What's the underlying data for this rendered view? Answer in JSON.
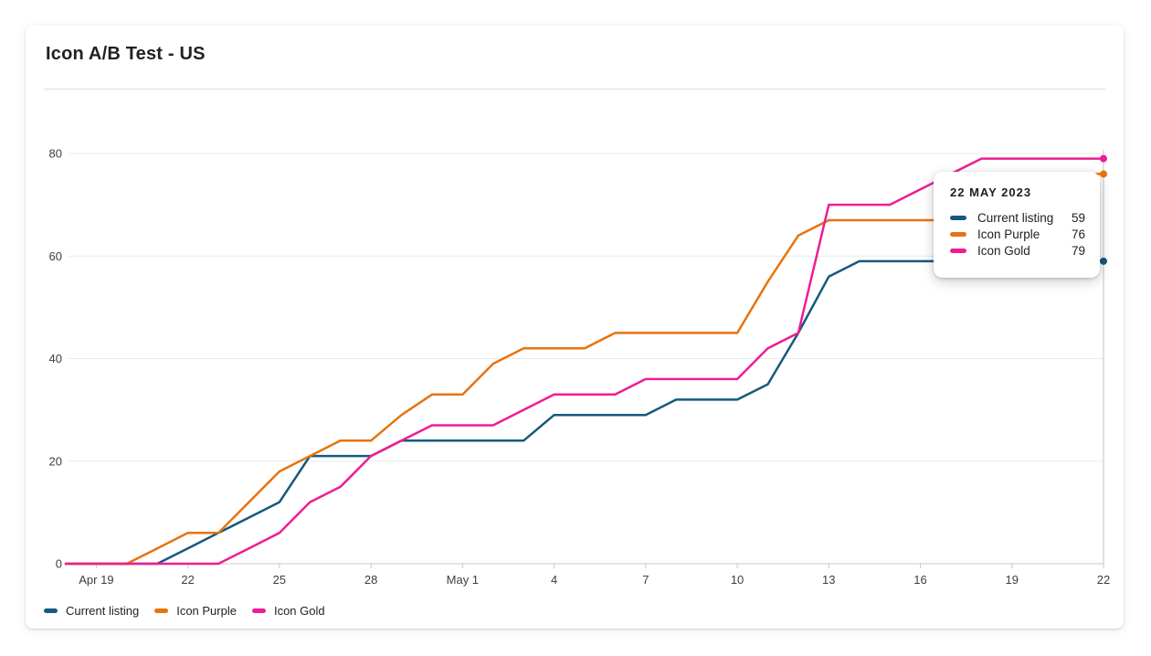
{
  "card": {
    "title": "Icon A/B Test - US"
  },
  "tooltip": {
    "date": "22 MAY 2023",
    "rows": [
      {
        "label": "Current listing",
        "value": 59,
        "color": "#155a7d"
      },
      {
        "label": "Icon Purple",
        "value": 76,
        "color": "#e8730e"
      },
      {
        "label": "Icon Gold",
        "value": 79,
        "color": "#ef1c94"
      }
    ]
  },
  "legend": {
    "items": [
      {
        "label": "Current listing",
        "color": "#155a7d"
      },
      {
        "label": "Icon Purple",
        "color": "#e8730e"
      },
      {
        "label": "Icon Gold",
        "color": "#ef1c94"
      }
    ]
  },
  "chart_data": {
    "type": "line",
    "title": "Icon A/B Test - US",
    "x": [
      "Apr 18",
      "Apr 19",
      "Apr 20",
      "Apr 21",
      "Apr 22",
      "Apr 23",
      "Apr 24",
      "Apr 25",
      "Apr 26",
      "Apr 27",
      "Apr 28",
      "Apr 29",
      "Apr 30",
      "May 1",
      "May 2",
      "May 3",
      "May 4",
      "May 5",
      "May 6",
      "May 7",
      "May 8",
      "May 9",
      "May 10",
      "May 11",
      "May 12",
      "May 13",
      "May 14",
      "May 15",
      "May 16",
      "May 17",
      "May 18",
      "May 19",
      "May 20",
      "May 21",
      "May 22"
    ],
    "x_tick_indices": [
      1,
      4,
      7,
      10,
      13,
      16,
      19,
      22,
      25,
      28,
      31,
      34
    ],
    "x_tick_labels": [
      "Apr 19",
      "22",
      "25",
      "28",
      "May 1",
      "4",
      "7",
      "10",
      "13",
      "16",
      "19",
      "22"
    ],
    "y_ticks": [
      0,
      20,
      40,
      60,
      80
    ],
    "ylim": [
      0,
      80
    ],
    "grid": "horizontal",
    "legend_position": "bottom-left",
    "hover": {
      "index": 34,
      "date": "22 MAY 2023"
    },
    "series": [
      {
        "name": "Current listing",
        "color": "#155a7d",
        "values": [
          0,
          0,
          0,
          0,
          3,
          6,
          9,
          12,
          21,
          21,
          21,
          24,
          24,
          24,
          24,
          24,
          29,
          29,
          29,
          29,
          32,
          32,
          32,
          35,
          45,
          56,
          59,
          59,
          59,
          59,
          59,
          59,
          59,
          59,
          59
        ]
      },
      {
        "name": "Icon Purple",
        "color": "#e8730e",
        "values": [
          0,
          0,
          0,
          3,
          6,
          6,
          12,
          18,
          21,
          24,
          24,
          29,
          33,
          33,
          39,
          42,
          42,
          42,
          45,
          45,
          45,
          45,
          45,
          55,
          64,
          67,
          67,
          67,
          67,
          67,
          67,
          70,
          73,
          76,
          76
        ]
      },
      {
        "name": "Icon Gold",
        "color": "#ef1c94",
        "values": [
          0,
          0,
          0,
          0,
          0,
          0,
          3,
          6,
          12,
          15,
          21,
          24,
          27,
          27,
          27,
          30,
          33,
          33,
          33,
          36,
          36,
          36,
          36,
          42,
          45,
          70,
          70,
          70,
          73,
          76,
          79,
          79,
          79,
          79,
          79
        ]
      }
    ]
  }
}
